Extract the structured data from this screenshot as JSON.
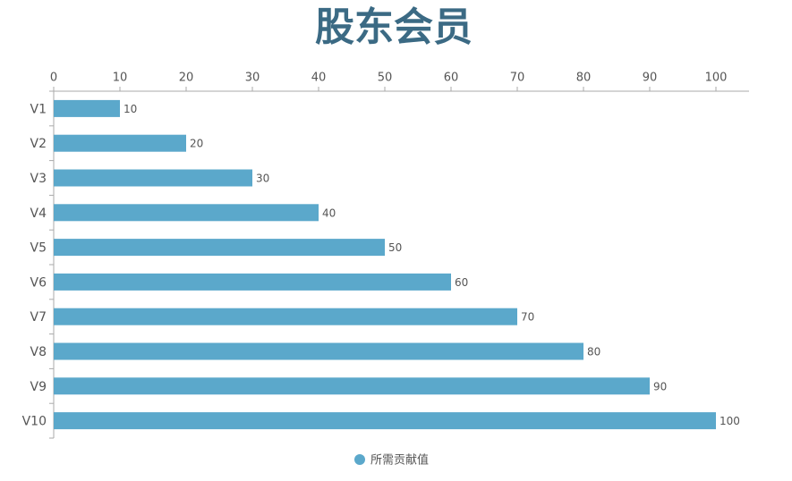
{
  "chart_data": {
    "type": "hbar",
    "title": "股东会员",
    "categories": [
      "V1",
      "V2",
      "V3",
      "V4",
      "V5",
      "V6",
      "V7",
      "V8",
      "V9",
      "V10"
    ],
    "series": [
      {
        "name": "所需贡献值",
        "color": "#5ba8cb",
        "values": [
          10,
          20,
          30,
          40,
          50,
          60,
          70,
          80,
          90,
          100
        ]
      }
    ],
    "xlim": [
      0,
      105
    ],
    "xticks": [
      0,
      10,
      20,
      30,
      40,
      50,
      60,
      70,
      80,
      90,
      100
    ],
    "x_axis_position": "top",
    "legend": "bottom",
    "grid": false
  }
}
